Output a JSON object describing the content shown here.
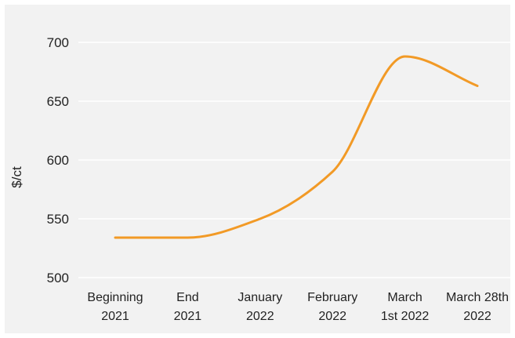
{
  "chart_data": {
    "type": "line",
    "title": "",
    "xlabel": "",
    "ylabel": "$/ct",
    "categories": [
      [
        "Beginning",
        "2021"
      ],
      [
        "End",
        "2021"
      ],
      [
        "January",
        "2022"
      ],
      [
        "February",
        "2022"
      ],
      [
        "March",
        "1st 2022"
      ],
      [
        "March 28th",
        "2022"
      ]
    ],
    "series": [
      {
        "values": [
          534,
          534,
          550,
          590,
          688,
          663
        ],
        "color": "#f29a26"
      }
    ],
    "ylim": [
      500,
      700
    ],
    "yticks": [
      500,
      550,
      600,
      650,
      700
    ],
    "grid": "horizontal",
    "gridColor": "#ffffff",
    "background": "#f2f2f2",
    "legend": "none"
  }
}
